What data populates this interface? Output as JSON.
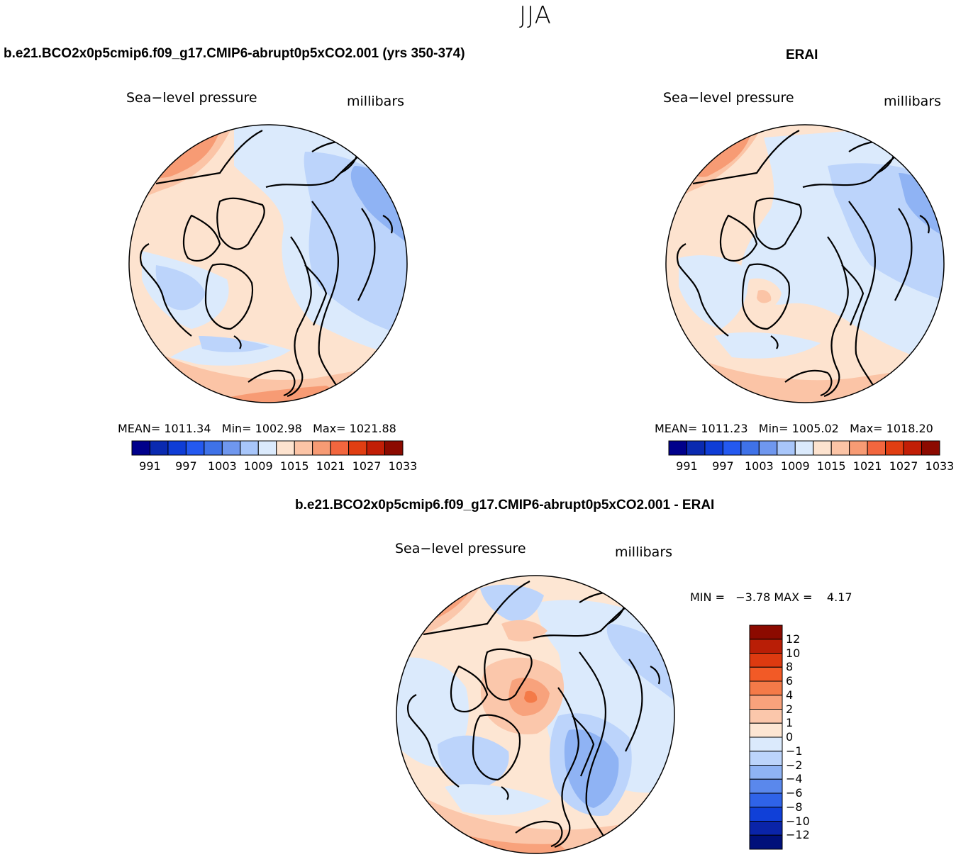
{
  "page": {
    "season": "JJA"
  },
  "panels": {
    "model": {
      "title": "b.e21.BCO2x0p5cmip6.f09_g17.CMIP6-abrupt0p5xCO2.001 (yrs 350-374)",
      "variable": "Sea−level pressure",
      "units": "millibars",
      "stats": {
        "mean_label": "MEAN=",
        "mean": "1011.34",
        "min_label": "Min=",
        "min": "1002.98",
        "max_label": "Max=",
        "max": "1021.88"
      }
    },
    "obs": {
      "title": "ERAI",
      "variable": "Sea−level pressure",
      "units": "millibars",
      "stats": {
        "mean_label": "MEAN=",
        "mean": "1011.23",
        "min_label": "Min=",
        "min": "1005.02",
        "max_label": "Max=",
        "max": "1018.20"
      }
    },
    "diff": {
      "title": "b.e21.BCO2x0p5cmip6.f09_g17.CMIP6-abrupt0p5xCO2.001 - ERAI",
      "variable": "Sea−level pressure",
      "units": "millibars",
      "stats": {
        "min_label": "MIN =",
        "min": "−3.78",
        "max_label": "MAX =",
        "max": "4.17"
      }
    }
  },
  "chart_data": [
    {
      "type": "heatmap",
      "title": "b.e21.BCO2x0p5cmip6.f09_g17.CMIP6-abrupt0p5xCO2.001 (yrs 350-374)",
      "projection": "north polar stereographic",
      "variable": "Sea-level pressure",
      "units": "millibars",
      "mean": 1011.34,
      "min": 1002.98,
      "max": 1021.88,
      "colorbar_levels": [
        991,
        994,
        997,
        1000,
        1003,
        1006,
        1009,
        1012,
        1015,
        1018,
        1021,
        1024,
        1027,
        1030,
        1033
      ],
      "colorbar_tick_labels": [
        "991",
        "997",
        "1003",
        "1009",
        "1015",
        "1021",
        "1027",
        "1033"
      ],
      "colorbar_colors": [
        "#00008b",
        "#0a2ab0",
        "#0f3dd6",
        "#2459f0",
        "#3f72e8",
        "#6f97ee",
        "#a8c6fa",
        "#dbeafc",
        "#fde3cf",
        "#fbc4a6",
        "#f79b74",
        "#f2663e",
        "#e13e12",
        "#c21e06",
        "#8c0a00"
      ],
      "colorbar_orientation": "horizontal"
    },
    {
      "type": "heatmap",
      "title": "ERAI",
      "projection": "north polar stereographic",
      "variable": "Sea-level pressure",
      "units": "millibars",
      "mean": 1011.23,
      "min": 1005.02,
      "max": 1018.2,
      "colorbar_levels": [
        991,
        994,
        997,
        1000,
        1003,
        1006,
        1009,
        1012,
        1015,
        1018,
        1021,
        1024,
        1027,
        1030,
        1033
      ],
      "colorbar_tick_labels": [
        "991",
        "997",
        "1003",
        "1009",
        "1015",
        "1021",
        "1027",
        "1033"
      ],
      "colorbar_colors": [
        "#00008b",
        "#0a2ab0",
        "#0f3dd6",
        "#2459f0",
        "#3f72e8",
        "#6f97ee",
        "#a8c6fa",
        "#dbeafc",
        "#fde3cf",
        "#fbc4a6",
        "#f79b74",
        "#f2663e",
        "#e13e12",
        "#c21e06",
        "#8c0a00"
      ],
      "colorbar_orientation": "horizontal"
    },
    {
      "type": "heatmap",
      "title": "b.e21.BCO2x0p5cmip6.f09_g17.CMIP6-abrupt0p5xCO2.001 - ERAI",
      "projection": "north polar stereographic",
      "variable": "Sea-level pressure",
      "units": "millibars",
      "min": -3.78,
      "max": 4.17,
      "colorbar_levels": [
        12,
        10,
        8,
        6,
        4,
        2,
        1,
        0,
        -1,
        -2,
        -4,
        -6,
        -8,
        -10,
        -12
      ],
      "colorbar_tick_labels": [
        "12",
        "10",
        "8",
        "6",
        "4",
        "2",
        "1",
        "0",
        "−1",
        "−2",
        "−4",
        "−6",
        "−8",
        "−10",
        "−12"
      ],
      "colorbar_colors": [
        "#8c0a00",
        "#b91e06",
        "#dd3a10",
        "#f25a26",
        "#f47a48",
        "#f8a27c",
        "#fbc7ab",
        "#fde6d3",
        "#dbeafc",
        "#bcd4fb",
        "#8fb3f4",
        "#5a88ec",
        "#2f63e8",
        "#1040d8",
        "#0a24a8",
        "#00107a"
      ],
      "colorbar_orientation": "vertical"
    }
  ],
  "colors": {
    "land": "#000000",
    "pole_near_neutral_red": "#fde6d3",
    "pole_near_neutral_blue": "#dbeafc"
  }
}
